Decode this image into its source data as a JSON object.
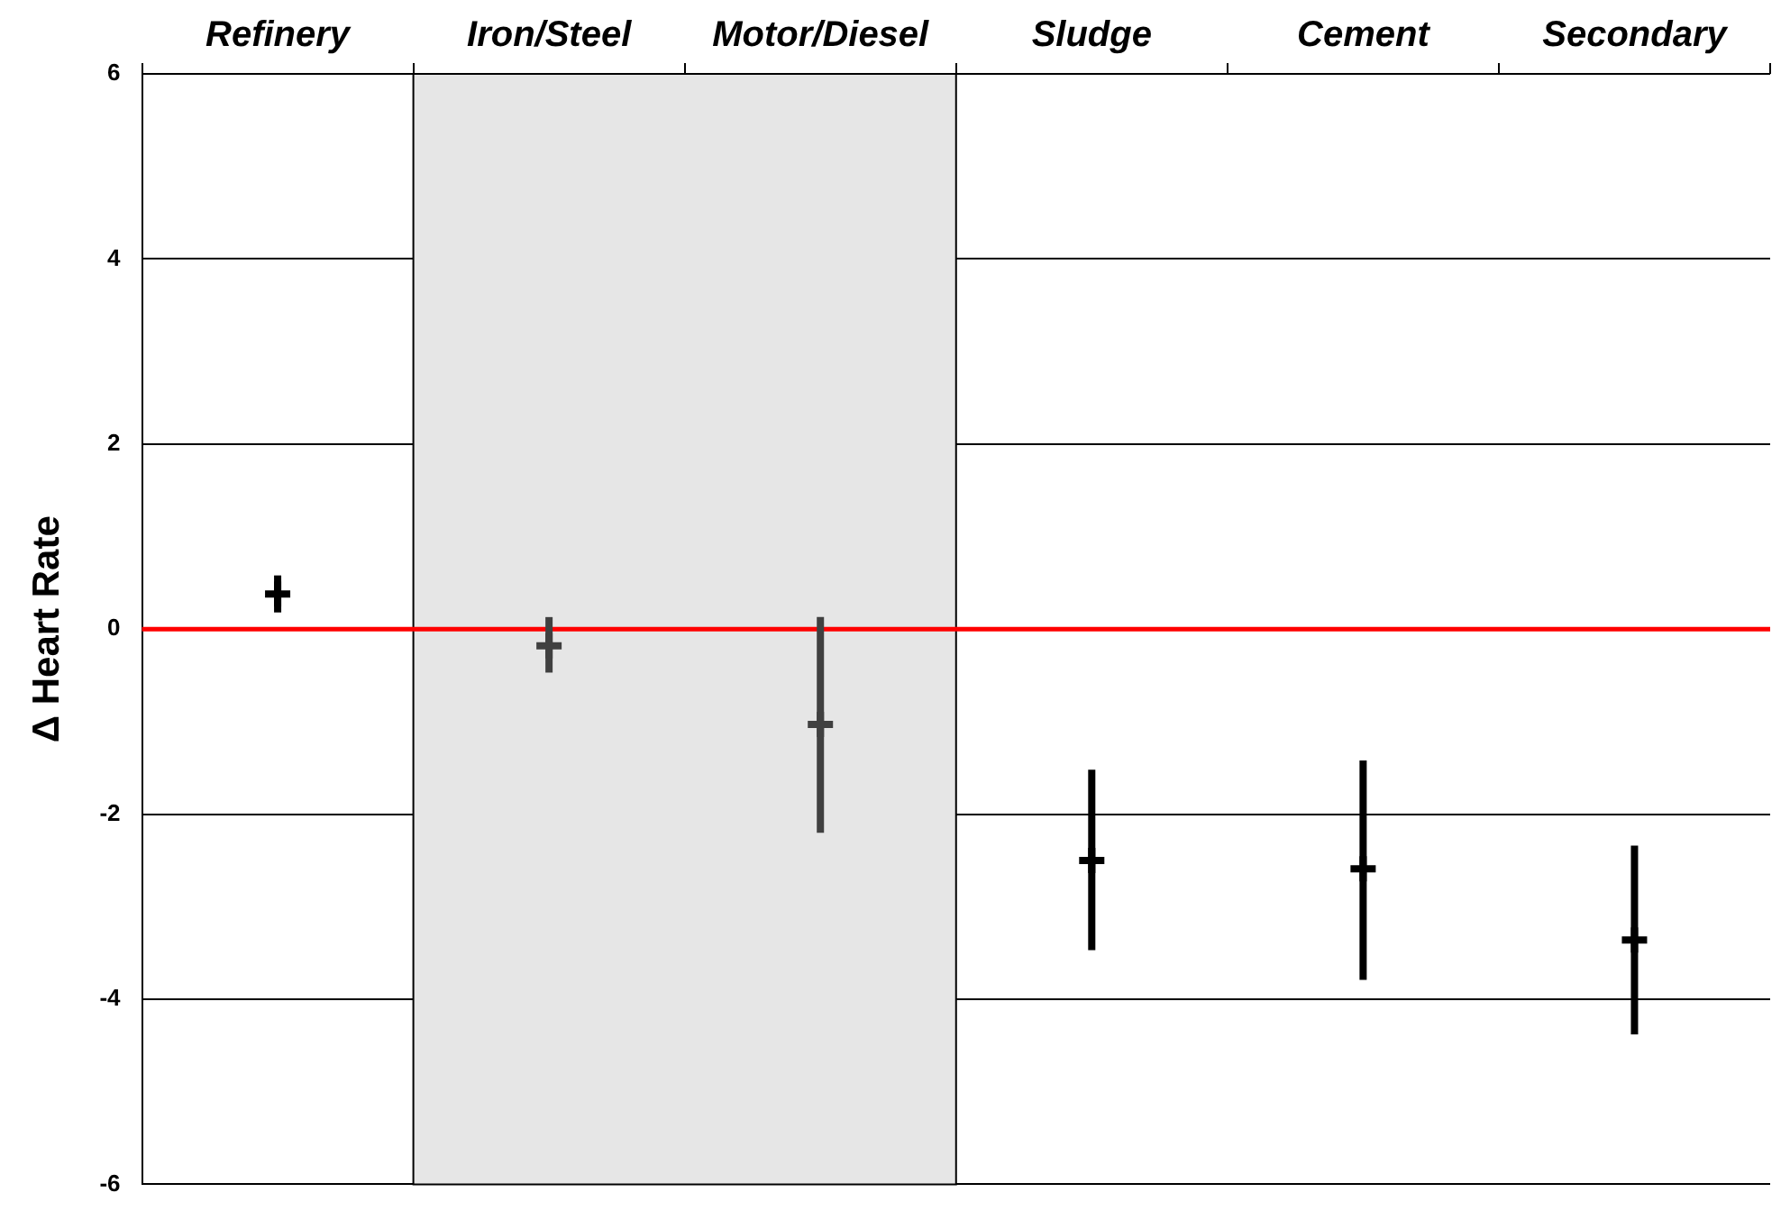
{
  "chart_data": {
    "type": "scatter",
    "ylabel": "Δ Heart Rate",
    "categories": [
      "Refinery",
      "Iron/Steel",
      "Motor/Diesel",
      "Sludge",
      "Cement",
      "Secondary"
    ],
    "values": [
      0.38,
      -0.18,
      -1.03,
      -2.5,
      -2.59,
      -3.36
    ],
    "errors": [
      [
        0.18,
        0.58
      ],
      [
        -0.47,
        0.13
      ],
      [
        -2.2,
        0.13
      ],
      [
        -3.47,
        -1.52
      ],
      [
        -3.79,
        -1.42
      ],
      [
        -4.38,
        -2.34
      ]
    ],
    "colors": [
      "#000000",
      "#404040",
      "#404040",
      "#000000",
      "#000000",
      "#000000"
    ],
    "ylim": [
      -6,
      6
    ],
    "yticks": [
      -6,
      -4,
      -2,
      0,
      2,
      4,
      6
    ],
    "grid": "y",
    "legend": false,
    "marker": "cross",
    "ref_lines": [
      {
        "axis": "y",
        "value": 0,
        "color": "#ff0000"
      }
    ],
    "bands": [
      {
        "axis": "x",
        "from": "Iron/Steel",
        "to": "Motor/Diesel",
        "color": "#e6e6e6"
      }
    ]
  }
}
